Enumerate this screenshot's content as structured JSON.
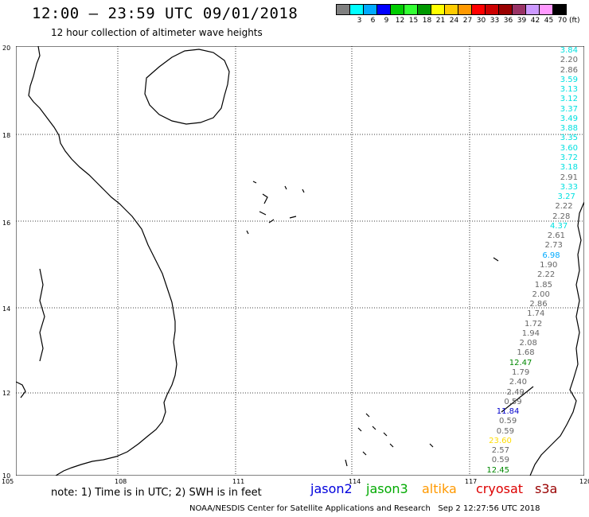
{
  "header": {
    "title": "12:00 – 23:59 UTC 09/01/2018",
    "subtitle": "12 hour collection of altimeter wave heights"
  },
  "scale": {
    "unit": "(ft)",
    "swatches": [
      {
        "color": "#808080",
        "label": ""
      },
      {
        "color": "#00ffff",
        "label": "3"
      },
      {
        "color": "#00aaff",
        "label": "6"
      },
      {
        "color": "#0000ff",
        "label": "9"
      },
      {
        "color": "#00cc00",
        "label": "12"
      },
      {
        "color": "#33ff33",
        "label": "15"
      },
      {
        "color": "#009900",
        "label": "18"
      },
      {
        "color": "#ffff00",
        "label": "21"
      },
      {
        "color": "#ffcc00",
        "label": "24"
      },
      {
        "color": "#ff9900",
        "label": "27"
      },
      {
        "color": "#ff0000",
        "label": "30"
      },
      {
        "color": "#cc0000",
        "label": "33"
      },
      {
        "color": "#990000",
        "label": "36"
      },
      {
        "color": "#993366",
        "label": "39"
      },
      {
        "color": "#cc99ff",
        "label": "42"
      },
      {
        "color": "#ff99ff",
        "label": "45"
      },
      {
        "color": "#000000",
        "label": "70"
      }
    ]
  },
  "axes": {
    "lat_labels": [
      "20",
      "18",
      "16",
      "14",
      "12",
      "10"
    ],
    "lon_labels": [
      "105",
      "108",
      "111",
      "114",
      "117",
      "120"
    ]
  },
  "observations": [
    {
      "value": "3.84",
      "color": "#00e0e0"
    },
    {
      "value": "2.20",
      "color": "#666666"
    },
    {
      "value": "2.86",
      "color": "#666666"
    },
    {
      "value": "3.59",
      "color": "#00e0e0"
    },
    {
      "value": "3.13",
      "color": "#00e0e0"
    },
    {
      "value": "3.12",
      "color": "#00e0e0"
    },
    {
      "value": "3.37",
      "color": "#00e0e0"
    },
    {
      "value": "3.49",
      "color": "#00e0e0"
    },
    {
      "value": "3.88",
      "color": "#00e0e0"
    },
    {
      "value": "3.35",
      "color": "#00e0e0"
    },
    {
      "value": "3.60",
      "color": "#00e0e0"
    },
    {
      "value": "3.72",
      "color": "#00e0e0"
    },
    {
      "value": "3.18",
      "color": "#00e0e0"
    },
    {
      "value": "2.91",
      "color": "#666666"
    },
    {
      "value": "3.33",
      "color": "#00e0e0"
    },
    {
      "value": "3.27",
      "color": "#00e0e0"
    },
    {
      "value": "2.22",
      "color": "#666666"
    },
    {
      "value": "2.28",
      "color": "#666666"
    },
    {
      "value": "4.37",
      "color": "#00e0e0"
    },
    {
      "value": "2.61",
      "color": "#666666"
    },
    {
      "value": "2.73",
      "color": "#666666"
    },
    {
      "value": "6.98",
      "color": "#00aaff"
    },
    {
      "value": "1.90",
      "color": "#666666"
    },
    {
      "value": "2.22",
      "color": "#666666"
    },
    {
      "value": "1.85",
      "color": "#666666"
    },
    {
      "value": "2.00",
      "color": "#666666"
    },
    {
      "value": "2.86",
      "color": "#666666"
    },
    {
      "value": "1.74",
      "color": "#666666"
    },
    {
      "value": "1.72",
      "color": "#666666"
    },
    {
      "value": "1.94",
      "color": "#666666"
    },
    {
      "value": "2.08",
      "color": "#666666"
    },
    {
      "value": "1.68",
      "color": "#666666"
    },
    {
      "value": "12.47",
      "color": "#008800"
    },
    {
      "value": "1.79",
      "color": "#666666"
    },
    {
      "value": "2.40",
      "color": "#666666"
    },
    {
      "value": "2.49",
      "color": "#666666"
    },
    {
      "value": "0.59",
      "color": "#666666"
    },
    {
      "value": "11.84",
      "color": "#0000cc"
    },
    {
      "value": "0.59",
      "color": "#666666"
    },
    {
      "value": "0.59",
      "color": "#666666"
    },
    {
      "value": "23.60",
      "color": "#ffdd00"
    },
    {
      "value": "2.57",
      "color": "#666666"
    },
    {
      "value": "0.59",
      "color": "#666666"
    },
    {
      "value": "12.45",
      "color": "#008800"
    }
  ],
  "note": "note: 1) Time is in UTC; 2) SWH is in feet",
  "legend": [
    {
      "name": "jason2",
      "color": "#0000dd"
    },
    {
      "name": "jason3",
      "color": "#00aa00"
    },
    {
      "name": "altika",
      "color": "#ff9900"
    },
    {
      "name": "cryosat",
      "color": "#dd0000"
    },
    {
      "name": "s3a",
      "color": "#990000"
    }
  ],
  "footer": {
    "credit": "NOAA/NESDIS Center for Satellite Applications and Research",
    "timestamp": "Sep  2 12:27:56 UTC 2018"
  }
}
